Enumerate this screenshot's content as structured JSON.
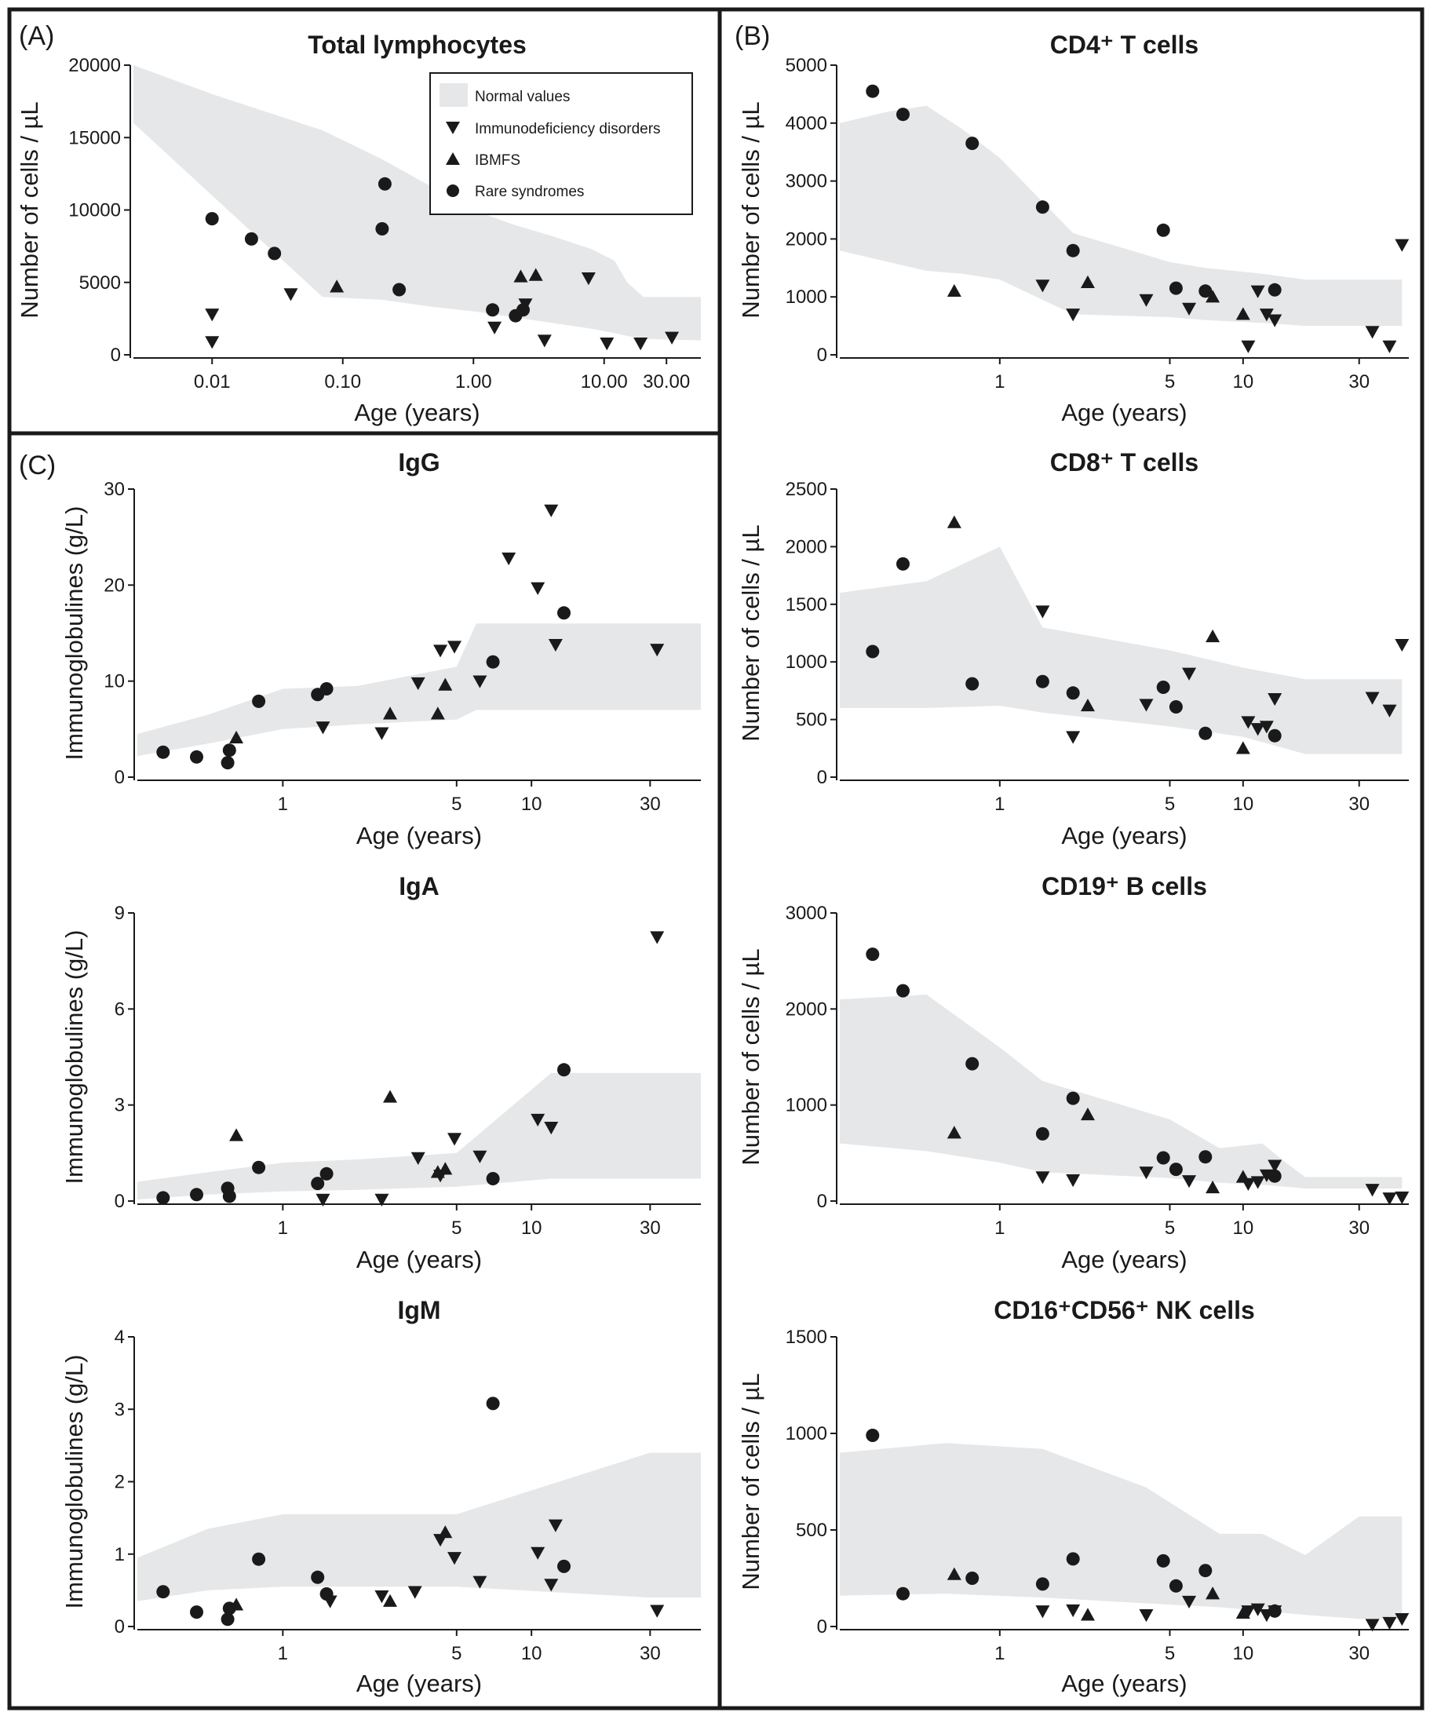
{
  "panel_labels": {
    "A": "(A)",
    "B": "(B)",
    "C": "(C)"
  },
  "legend": {
    "normal": "Normal values",
    "immuno": "Immunodeficiency disorders",
    "ibmfs": "IBMFS",
    "rare": "Rare syndromes"
  },
  "colors": {
    "band": "#e6e7e8",
    "marker": "#1a1a1a",
    "frame": "#1a1a1a"
  },
  "marker_shapes": {
    "immuno": "triangle-down",
    "ibmfs": "triangle-up",
    "rare": "circle"
  },
  "chart_data": [
    {
      "id": "total",
      "type": "scatter",
      "title": "Total lymphocytes",
      "xlabel": "Age (years)",
      "ylabel": "Number of cells / µL",
      "xscale": "log",
      "xlim": [
        0.0025,
        55
      ],
      "ylim": [
        0,
        20000
      ],
      "xticks": [
        0.01,
        0.1,
        1,
        10,
        30
      ],
      "xticklabels": [
        "0.01",
        "0.10",
        "1.00",
        "10.00",
        "30.00"
      ],
      "yticks": [
        0,
        5000,
        10000,
        15000,
        20000
      ],
      "yticklabels": [
        "0",
        "5000",
        "10000",
        "15000",
        "20000"
      ],
      "normal_range": {
        "x": [
          0.0025,
          0.01,
          0.07,
          0.2,
          0.5,
          1,
          2,
          4,
          8,
          12,
          15,
          20,
          55
        ],
        "upper": [
          20000,
          18000,
          15500,
          13500,
          11500,
          10000,
          9000,
          8200,
          7300,
          6500,
          5000,
          4000,
          4000
        ],
        "lower": [
          16000,
          11000,
          4000,
          3800,
          3300,
          3000,
          2600,
          2200,
          1800,
          1500,
          1300,
          1100,
          1000
        ]
      },
      "series": [
        {
          "group": "immuno",
          "x": [
            0.01,
            0.01,
            0.04,
            1.45,
            2.5,
            3.5,
            7.6,
            10.5,
            19,
            33
          ],
          "y": [
            2800,
            900,
            4200,
            1900,
            3500,
            1000,
            5300,
            800,
            800,
            1200
          ]
        },
        {
          "group": "ibmfs",
          "x": [
            0.09,
            2.3,
            3.0
          ],
          "y": [
            4700,
            5400,
            5500
          ]
        },
        {
          "group": "rare",
          "x": [
            0.01,
            0.02,
            0.03,
            0.2,
            0.21,
            0.27,
            1.4,
            2.1,
            2.4
          ],
          "y": [
            9400,
            8000,
            7000,
            8700,
            11800,
            4500,
            3100,
            2700,
            3100
          ]
        }
      ]
    },
    {
      "id": "cd4",
      "type": "scatter",
      "title": "CD4⁺ T cells",
      "xlabel": "Age (years)",
      "ylabel": "Number of cells / µL",
      "xscale": "log",
      "xlim": [
        0.22,
        48
      ],
      "ylim": [
        0,
        5000
      ],
      "xticks": [
        1,
        5,
        10,
        30
      ],
      "xticklabels": [
        "1",
        "5",
        "10",
        "30"
      ],
      "yticks": [
        0,
        1000,
        2000,
        3000,
        4000,
        5000
      ],
      "yticklabels": [
        "0",
        "1000",
        "2000",
        "3000",
        "4000",
        "5000"
      ],
      "normal_range": {
        "x": [
          0.22,
          0.35,
          0.5,
          0.7,
          1,
          2,
          5,
          7,
          12,
          18,
          45
        ],
        "upper": [
          4000,
          4200,
          4300,
          3900,
          3400,
          2100,
          1600,
          1500,
          1400,
          1300,
          1300
        ],
        "lower": [
          1800,
          1600,
          1450,
          1400,
          1300,
          700,
          650,
          600,
          550,
          500,
          500
        ]
      },
      "series": [
        {
          "group": "immuno",
          "x": [
            1.5,
            2,
            4,
            6,
            10.5,
            11.5,
            12.5,
            13.5,
            34,
            40,
            45
          ],
          "y": [
            1200,
            700,
            950,
            800,
            150,
            1100,
            700,
            600,
            400,
            150,
            1900
          ]
        },
        {
          "group": "ibmfs",
          "x": [
            0.65,
            2.3,
            7.5,
            10
          ],
          "y": [
            1100,
            1250,
            1000,
            700
          ]
        },
        {
          "group": "rare",
          "x": [
            0.3,
            0.4,
            0.77,
            1.5,
            2,
            4.7,
            5.3,
            7,
            13.5
          ],
          "y": [
            4550,
            4150,
            3650,
            2550,
            1800,
            2150,
            1150,
            1100,
            1120
          ]
        }
      ]
    },
    {
      "id": "igg",
      "type": "scatter",
      "title": "IgG",
      "xlabel": "Age (years)",
      "ylabel": "Immunoglobulines (g/L)",
      "xscale": "log",
      "xlim": [
        0.26,
        48
      ],
      "ylim": [
        0,
        30
      ],
      "xticks": [
        1,
        5,
        10,
        30
      ],
      "xticklabels": [
        "1",
        "5",
        "10",
        "30"
      ],
      "yticks": [
        0,
        10,
        20,
        30
      ],
      "yticklabels": [
        "0",
        "10",
        "20",
        "30"
      ],
      "normal_range": {
        "x": [
          0.26,
          0.5,
          1,
          2,
          5,
          6,
          48
        ],
        "upper": [
          4.5,
          6.5,
          9.2,
          9.5,
          11.5,
          16,
          16
        ],
        "lower": [
          2.2,
          3.5,
          5,
          5.5,
          6,
          7,
          7
        ]
      },
      "series": [
        {
          "group": "immuno",
          "x": [
            1.45,
            2.5,
            3.5,
            4.3,
            4.9,
            6.2,
            8.1,
            10.6,
            12,
            12.5,
            32
          ],
          "y": [
            5.2,
            4.6,
            9.8,
            13.2,
            13.6,
            10,
            22.8,
            19.7,
            27.8,
            13.8,
            13.3
          ]
        },
        {
          "group": "ibmfs",
          "x": [
            0.65,
            2.7,
            4.2,
            4.5
          ],
          "y": [
            4.1,
            6.6,
            6.6,
            9.6
          ]
        },
        {
          "group": "rare",
          "x": [
            0.33,
            0.45,
            0.6,
            0.61,
            0.8,
            1.38,
            1.5,
            7,
            13.5
          ],
          "y": [
            2.6,
            2.1,
            1.5,
            2.8,
            7.9,
            8.6,
            9.2,
            12,
            17.1
          ]
        }
      ]
    },
    {
      "id": "cd8",
      "type": "scatter",
      "title": "CD8⁺ T cells",
      "xlabel": "Age (years)",
      "ylabel": "Number of cells / µL",
      "xscale": "log",
      "xlim": [
        0.22,
        48
      ],
      "ylim": [
        0,
        2500
      ],
      "xticks": [
        1,
        5,
        10,
        30
      ],
      "xticklabels": [
        "1",
        "5",
        "10",
        "30"
      ],
      "yticks": [
        0,
        500,
        1000,
        1500,
        2000,
        2500
      ],
      "yticklabels": [
        "0",
        "500",
        "1000",
        "1500",
        "2000",
        "2500"
      ],
      "normal_range": {
        "x": [
          0.22,
          0.5,
          1,
          1.5,
          5,
          10,
          18,
          45
        ],
        "upper": [
          1600,
          1700,
          2000,
          1300,
          1100,
          950,
          850,
          850
        ],
        "lower": [
          600,
          600,
          620,
          560,
          440,
          350,
          200,
          200
        ]
      },
      "series": [
        {
          "group": "immuno",
          "x": [
            1.5,
            2,
            4,
            6,
            10.5,
            11.5,
            12.5,
            13.5,
            34,
            40,
            45
          ],
          "y": [
            1440,
            350,
            630,
            900,
            480,
            420,
            440,
            680,
            690,
            580,
            1150
          ]
        },
        {
          "group": "ibmfs",
          "x": [
            0.65,
            2.3,
            7.5,
            10
          ],
          "y": [
            2210,
            620,
            1220,
            250
          ]
        },
        {
          "group": "rare",
          "x": [
            0.3,
            0.4,
            0.77,
            1.5,
            2,
            4.7,
            5.3,
            7,
            13.5
          ],
          "y": [
            1090,
            1850,
            810,
            830,
            730,
            780,
            610,
            380,
            360
          ]
        }
      ]
    },
    {
      "id": "iga",
      "type": "scatter",
      "title": "IgA",
      "xlabel": "Age (years)",
      "ylabel": "Immunoglobulines (g/L)",
      "xscale": "log",
      "xlim": [
        0.26,
        48
      ],
      "ylim": [
        0,
        9
      ],
      "xticks": [
        1,
        5,
        10,
        30
      ],
      "xticklabels": [
        "1",
        "5",
        "10",
        "30"
      ],
      "yticks": [
        0,
        3,
        6,
        9
      ],
      "yticklabels": [
        "0",
        "3",
        "6",
        "9"
      ],
      "normal_range": {
        "x": [
          0.26,
          0.5,
          1,
          2,
          5,
          12,
          48
        ],
        "upper": [
          0.6,
          0.9,
          1.2,
          1.3,
          1.5,
          4,
          4
        ],
        "lower": [
          0.05,
          0.2,
          0.3,
          0.35,
          0.45,
          0.7,
          0.7
        ]
      },
      "series": [
        {
          "group": "immuno",
          "x": [
            1.45,
            2.5,
            3.5,
            4.3,
            4.9,
            6.2,
            10.6,
            12,
            32
          ],
          "y": [
            0.05,
            0.05,
            1.35,
            0.8,
            1.95,
            1.4,
            2.55,
            2.3,
            8.25
          ]
        },
        {
          "group": "ibmfs",
          "x": [
            0.65,
            2.7,
            4.2,
            4.5
          ],
          "y": [
            2.05,
            3.25,
            0.9,
            1
          ]
        },
        {
          "group": "rare",
          "x": [
            0.33,
            0.45,
            0.6,
            0.61,
            0.8,
            1.38,
            1.5,
            7,
            13.5
          ],
          "y": [
            0.1,
            0.2,
            0.4,
            0.15,
            1.05,
            0.55,
            0.85,
            0.7,
            4.1
          ]
        }
      ]
    },
    {
      "id": "cd19",
      "type": "scatter",
      "title": "CD19⁺ B cells",
      "xlabel": "Age (years)",
      "ylabel": "Number of cells / µL",
      "xscale": "log",
      "xlim": [
        0.22,
        48
      ],
      "ylim": [
        0,
        3000
      ],
      "xticks": [
        1,
        5,
        10,
        30
      ],
      "xticklabels": [
        "1",
        "5",
        "10",
        "30"
      ],
      "yticks": [
        0,
        1000,
        2000,
        3000
      ],
      "yticklabels": [
        "0",
        "1000",
        "2000",
        "3000"
      ],
      "normal_range": {
        "x": [
          0.22,
          0.5,
          1,
          1.5,
          5,
          8,
          12,
          15,
          18,
          45
        ],
        "upper": [
          2100,
          2150,
          1600,
          1250,
          850,
          550,
          600,
          400,
          250,
          250
        ],
        "lower": [
          600,
          520,
          400,
          300,
          240,
          190,
          170,
          150,
          130,
          130
        ]
      },
      "series": [
        {
          "group": "immuno",
          "x": [
            1.5,
            2,
            4,
            6,
            10.5,
            11.5,
            12.5,
            13.5,
            34,
            40,
            45
          ],
          "y": [
            250,
            220,
            300,
            210,
            180,
            200,
            270,
            370,
            120,
            30,
            40
          ]
        },
        {
          "group": "ibmfs",
          "x": [
            0.65,
            2.3,
            7.5,
            10
          ],
          "y": [
            710,
            900,
            140,
            250
          ]
        },
        {
          "group": "rare",
          "x": [
            0.3,
            0.4,
            0.77,
            1.5,
            2,
            4.7,
            5.3,
            7,
            13.5
          ],
          "y": [
            2570,
            2190,
            1430,
            700,
            1070,
            450,
            330,
            460,
            260
          ]
        }
      ]
    },
    {
      "id": "igm",
      "type": "scatter",
      "title": "IgM",
      "xlabel": "Age (years)",
      "ylabel": "Immunoglobulines (g/L)",
      "xscale": "log",
      "xlim": [
        0.26,
        48
      ],
      "ylim": [
        0,
        4
      ],
      "xticks": [
        1,
        5,
        10,
        30
      ],
      "xticklabels": [
        "1",
        "5",
        "10",
        "30"
      ],
      "yticks": [
        0,
        1,
        2,
        3,
        4
      ],
      "yticklabels": [
        "0",
        "1",
        "2",
        "3",
        "4"
      ],
      "normal_range": {
        "x": [
          0.26,
          0.5,
          1,
          2,
          5,
          30,
          48
        ],
        "upper": [
          0.95,
          1.35,
          1.55,
          1.55,
          1.55,
          2.4,
          2.4
        ],
        "lower": [
          0.35,
          0.5,
          0.55,
          0.55,
          0.55,
          0.4,
          0.4
        ]
      },
      "series": [
        {
          "group": "immuno",
          "x": [
            1.55,
            2.5,
            3.4,
            4.3,
            4.9,
            6.2,
            10.6,
            12,
            12.5,
            32
          ],
          "y": [
            0.35,
            0.42,
            0.48,
            1.2,
            0.95,
            0.62,
            1.02,
            0.58,
            1.4,
            0.22
          ]
        },
        {
          "group": "ibmfs",
          "x": [
            0.65,
            2.7,
            4.5
          ],
          "y": [
            0.3,
            0.35,
            1.3
          ]
        },
        {
          "group": "rare",
          "x": [
            0.33,
            0.45,
            0.6,
            0.61,
            0.8,
            1.38,
            1.5,
            7,
            13.5
          ],
          "y": [
            0.48,
            0.2,
            0.1,
            0.25,
            0.93,
            0.68,
            0.45,
            3.08,
            0.83
          ]
        }
      ]
    },
    {
      "id": "nk",
      "type": "scatter",
      "title": "CD16⁺CD56⁺ NK cells",
      "xlabel": "Age (years)",
      "ylabel": "Number of cells / µL",
      "xscale": "log",
      "xlim": [
        0.22,
        48
      ],
      "ylim": [
        0,
        1500
      ],
      "xticks": [
        1,
        5,
        10,
        30
      ],
      "xticklabels": [
        "1",
        "5",
        "10",
        "30"
      ],
      "yticks": [
        0,
        500,
        1000,
        1500
      ],
      "yticklabels": [
        "0",
        "500",
        "1000",
        "1500"
      ],
      "normal_range": {
        "x": [
          0.22,
          0.6,
          1.5,
          4,
          8,
          12,
          18,
          30,
          45
        ],
        "upper": [
          900,
          950,
          920,
          720,
          480,
          480,
          370,
          570,
          570
        ],
        "lower": [
          160,
          170,
          150,
          120,
          100,
          80,
          60,
          40,
          40
        ]
      },
      "series": [
        {
          "group": "immuno",
          "x": [
            1.5,
            2,
            4,
            6,
            10.5,
            11.5,
            12.5,
            13.5,
            34,
            40,
            45
          ],
          "y": [
            80,
            85,
            60,
            130,
            80,
            90,
            60,
            80,
            10,
            20,
            40
          ]
        },
        {
          "group": "ibmfs",
          "x": [
            0.65,
            2.3,
            7.5,
            10
          ],
          "y": [
            270,
            60,
            170,
            70
          ]
        },
        {
          "group": "rare",
          "x": [
            0.3,
            0.4,
            0.77,
            1.5,
            2,
            4.7,
            5.3,
            7,
            13.5
          ],
          "y": [
            990,
            170,
            250,
            220,
            350,
            340,
            210,
            290,
            80
          ]
        }
      ]
    }
  ]
}
